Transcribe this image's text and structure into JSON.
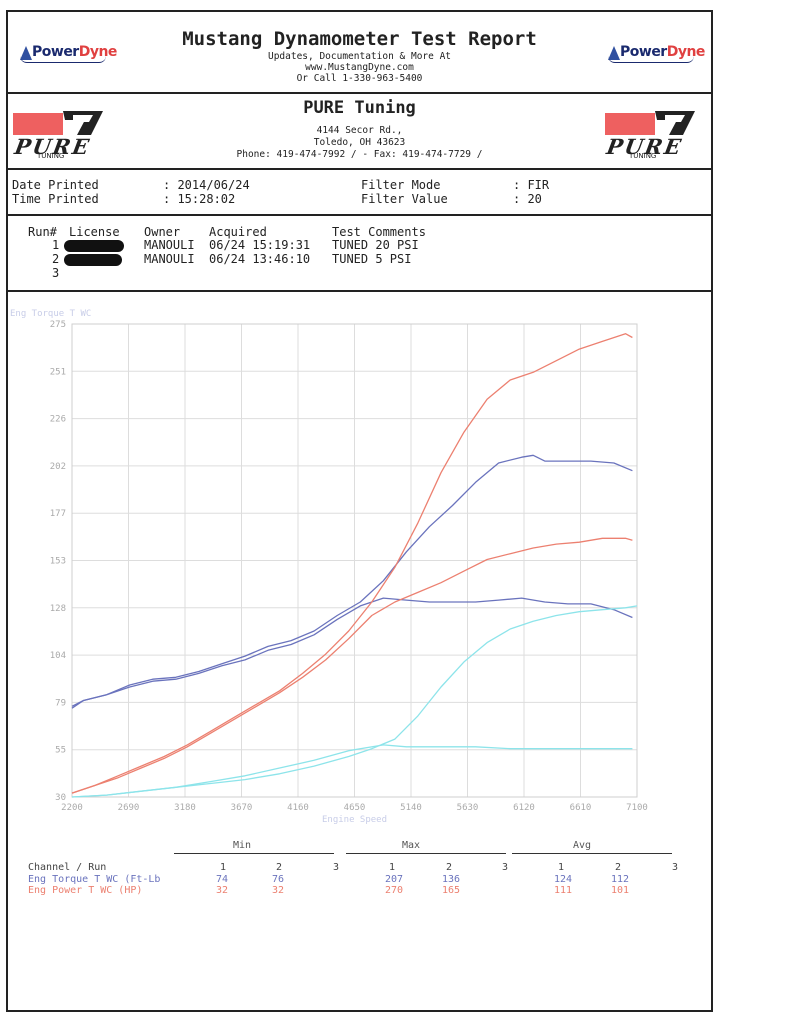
{
  "header": {
    "title": "Mustang Dynamometer Test Report",
    "line1": "Updates, Documentation & More At",
    "line2": "www.MustangDyne.com",
    "line3": "Or Call 1-330-963-5400",
    "logo_left_a": "Power",
    "logo_left_b": "Dyne",
    "logo_right_a": "Power",
    "logo_right_b": "Dyne"
  },
  "shop": {
    "name": "PURE Tuning",
    "address1": "4144 Secor Rd.,",
    "address2": "Toledo, OH  43623",
    "phone": "Phone: 419-474-7992 /  - Fax: 419-474-7729 /",
    "logo_word": "PURE",
    "logo_sub": "TUNING"
  },
  "print_info": {
    "date_label": "Date Printed",
    "date_value": ": 2014/06/24",
    "time_label": "Time Printed",
    "time_value": ": 15:28:02",
    "filter_mode_label": "Filter Mode",
    "filter_mode_value": ": FIR",
    "filter_value_label": "Filter Value",
    "filter_value_value": ": 20"
  },
  "runs": {
    "headers": {
      "run": "Run#",
      "license": "License",
      "owner": "Owner",
      "acquired": "Acquired",
      "comments": "Test Comments"
    },
    "rows": [
      {
        "run": "1",
        "owner": "MANOULI",
        "acquired": "06/24 15:19:31",
        "comments": "TUNED 20 PSI"
      },
      {
        "run": "2",
        "owner": "MANOULI",
        "acquired": "06/24 13:46:10",
        "comments": "TUNED 5 PSI"
      },
      {
        "run": "3",
        "owner": "",
        "acquired": "",
        "comments": ""
      }
    ]
  },
  "colors": {
    "torque": "#6a73bd",
    "power": "#ec8070",
    "boost": "#8de4ea",
    "grid": "#dddddd",
    "faint": "#c8cde8"
  },
  "chart_data": {
    "type": "line",
    "ylabel": "Eng Torque T WC",
    "xlabel": "Engine Speed",
    "x_ticks": [
      "2200",
      "2690",
      "3180",
      "3670",
      "4160",
      "4650",
      "5140",
      "5630",
      "6120",
      "6610",
      "7100"
    ],
    "y_ticks": [
      "275",
      "251",
      "226",
      "202",
      "177",
      "153",
      "128",
      "104",
      "79",
      "55",
      "30"
    ],
    "xlim": [
      2200,
      7100
    ],
    "ylim": [
      30,
      275
    ],
    "grid": true,
    "series": [
      {
        "key": "torque_run1",
        "color": "torque",
        "x": [
          2200,
          2300,
          2500,
          2700,
          2900,
          3100,
          3300,
          3500,
          3700,
          3900,
          4100,
          4300,
          4500,
          4700,
          4900,
          5100,
          5300,
          5500,
          5700,
          5900,
          6100,
          6200,
          6300,
          6500,
          6700,
          6900,
          7060
        ],
        "y": [
          76,
          80,
          83,
          88,
          91,
          92,
          95,
          99,
          103,
          108,
          111,
          116,
          124,
          131,
          142,
          157,
          170,
          181,
          193,
          203,
          206,
          207,
          204,
          204,
          204,
          203,
          199
        ]
      },
      {
        "key": "torque_run2",
        "color": "torque",
        "x": [
          2200,
          2300,
          2500,
          2700,
          2900,
          3100,
          3300,
          3500,
          3700,
          3900,
          4100,
          4300,
          4500,
          4700,
          4900,
          5100,
          5300,
          5500,
          5700,
          5900,
          6100,
          6300,
          6500,
          6700,
          6900,
          7060
        ],
        "y": [
          77,
          80,
          83,
          87,
          90,
          91,
          94,
          98,
          101,
          106,
          109,
          114,
          122,
          129,
          133,
          132,
          131,
          131,
          131,
          132,
          133,
          131,
          130,
          130,
          127,
          123
        ]
      },
      {
        "key": "power_run1",
        "color": "power",
        "x": [
          2200,
          2400,
          2600,
          2800,
          3000,
          3200,
          3400,
          3600,
          3800,
          4000,
          4200,
          4400,
          4600,
          4800,
          5000,
          5200,
          5400,
          5600,
          5800,
          6000,
          6200,
          6400,
          6600,
          6800,
          7000,
          7060
        ],
        "y": [
          32,
          36,
          41,
          46,
          51,
          57,
          64,
          71,
          78,
          85,
          94,
          104,
          116,
          131,
          149,
          172,
          198,
          219,
          236,
          246,
          250,
          256,
          262,
          266,
          270,
          268
        ]
      },
      {
        "key": "power_run2",
        "color": "power",
        "x": [
          2200,
          2400,
          2600,
          2800,
          3000,
          3200,
          3400,
          3600,
          3800,
          4000,
          4200,
          4400,
          4600,
          4800,
          5000,
          5200,
          5400,
          5600,
          5800,
          6000,
          6200,
          6400,
          6600,
          6800,
          7000,
          7060
        ],
        "y": [
          32,
          36,
          40,
          45,
          50,
          56,
          63,
          70,
          77,
          84,
          92,
          101,
          112,
          124,
          131,
          136,
          141,
          147,
          153,
          156,
          159,
          161,
          162,
          164,
          164,
          163
        ]
      },
      {
        "key": "boost_run1",
        "color": "boost",
        "x": [
          2200,
          2500,
          2800,
          3100,
          3400,
          3700,
          4000,
          4300,
          4600,
          4800,
          5000,
          5200,
          5400,
          5600,
          5800,
          6000,
          6200,
          6400,
          6600,
          6800,
          7000,
          7100
        ],
        "y": [
          30,
          31,
          33,
          35,
          37,
          39,
          42,
          46,
          51,
          55,
          60,
          72,
          87,
          100,
          110,
          117,
          121,
          124,
          126,
          127,
          128,
          129
        ]
      },
      {
        "key": "boost_run2",
        "color": "boost",
        "x": [
          2200,
          2500,
          2800,
          3100,
          3400,
          3700,
          4000,
          4300,
          4600,
          4900,
          5100,
          5400,
          5700,
          6000,
          6300,
          6600,
          6900,
          7060
        ],
        "y": [
          30,
          31,
          33,
          35,
          38,
          41,
          45,
          49,
          54,
          57,
          56,
          56,
          56,
          55,
          55,
          55,
          55,
          55
        ]
      }
    ]
  },
  "stats": {
    "groups": [
      "Min",
      "Max",
      "Avg"
    ],
    "header": {
      "label": "Channel / Run",
      "cols": [
        "1",
        "2",
        "3",
        "1",
        "2",
        "3",
        "1",
        "2",
        "3"
      ]
    },
    "rows": [
      {
        "label": "Eng Torque T WC (Ft-Lb",
        "color": "torque",
        "vals": [
          "74",
          "76",
          "",
          "207",
          "136",
          "",
          "124",
          "112",
          ""
        ]
      },
      {
        "label": "Eng Power T WC (HP)",
        "color": "power",
        "vals": [
          "32",
          "32",
          "",
          "270",
          "165",
          "",
          "111",
          "101",
          ""
        ]
      }
    ]
  }
}
